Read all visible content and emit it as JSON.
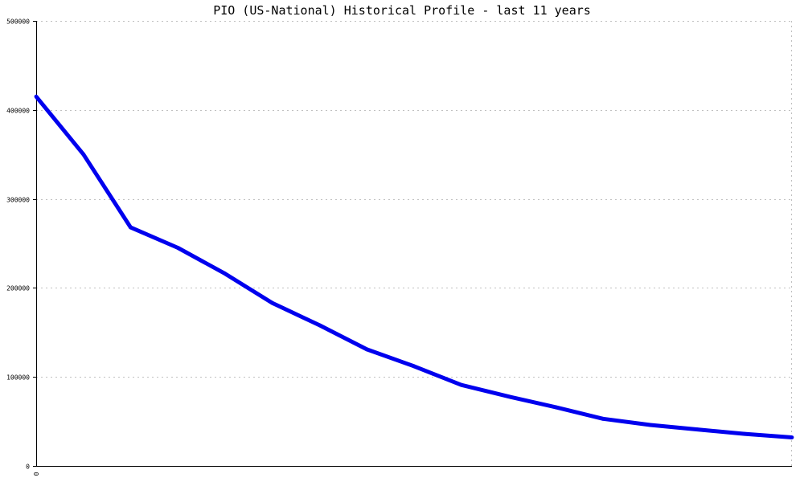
{
  "chart_data": {
    "type": "line",
    "title": "PIO (US-National) Historical Profile - last 11 years",
    "xlabel": "",
    "ylabel": "",
    "ylim": [
      0,
      500000
    ],
    "y_ticks": [
      "0",
      "100000",
      "200000",
      "300000",
      "400000",
      "500000"
    ],
    "x_ticks": [
      "0"
    ],
    "grid": true,
    "series": [
      {
        "color": "#0000ee",
        "values": [
          415000,
          350000,
          268000,
          245000,
          216000,
          183000,
          158000,
          131000,
          112000,
          91000,
          78000,
          66000,
          53000,
          46000,
          41000,
          36000,
          32000
        ]
      }
    ]
  }
}
